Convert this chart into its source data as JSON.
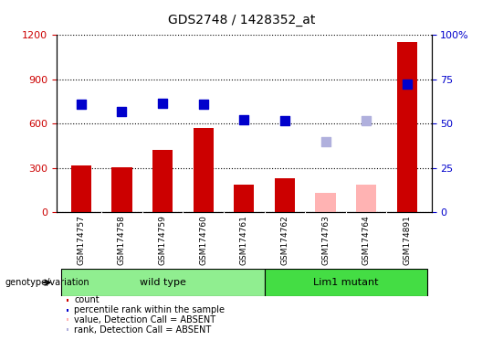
{
  "title": "GDS2748 / 1428352_at",
  "samples": [
    "GSM174757",
    "GSM174758",
    "GSM174759",
    "GSM174760",
    "GSM174761",
    "GSM174762",
    "GSM174763",
    "GSM174764",
    "GSM174891"
  ],
  "count_values": [
    320,
    305,
    420,
    570,
    185,
    230,
    null,
    null,
    1150
  ],
  "count_absent_values": [
    null,
    null,
    null,
    null,
    null,
    null,
    130,
    190,
    null
  ],
  "percentile_values": [
    730,
    680,
    740,
    730,
    630,
    620,
    null,
    null,
    870
  ],
  "percentile_absent_values": [
    null,
    null,
    null,
    null,
    null,
    null,
    480,
    620,
    null
  ],
  "count_color": "#cc0000",
  "count_absent_color": "#ffb3b3",
  "percentile_color": "#0000cc",
  "percentile_absent_color": "#b0b0dd",
  "ylim_left": [
    0,
    1200
  ],
  "ylim_right": [
    0,
    100
  ],
  "yticks_left": [
    0,
    300,
    600,
    900,
    1200
  ],
  "yticks_right": [
    0,
    25,
    50,
    75,
    100
  ],
  "ytick_labels_right": [
    "0",
    "25",
    "50",
    "75",
    "100%"
  ],
  "wild_type_indices": [
    0,
    1,
    2,
    3,
    4
  ],
  "mutant_indices": [
    5,
    6,
    7,
    8
  ],
  "wild_type_label": "wild type",
  "mutant_label": "Lim1 mutant",
  "genotype_label": "genotype/variation",
  "sample_bg_color": "#d0d0d0",
  "wild_type_color": "#90ee90",
  "mutant_color": "#44dd44",
  "legend_labels": [
    "count",
    "percentile rank within the sample",
    "value, Detection Call = ABSENT",
    "rank, Detection Call = ABSENT"
  ],
  "legend_colors": [
    "#cc0000",
    "#0000cc",
    "#ffb3b3",
    "#b0b0dd"
  ],
  "bar_width": 0.5,
  "dot_size": 55,
  "grid_color": "#000000",
  "title_fontsize": 10,
  "tick_fontsize": 8,
  "label_fontsize": 8
}
